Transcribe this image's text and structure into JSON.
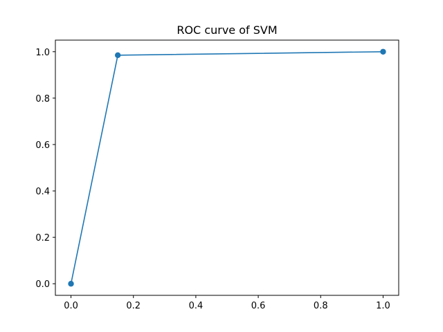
{
  "chart_data": {
    "type": "line",
    "title": "ROC curve of SVM",
    "xlabel": "",
    "ylabel": "",
    "xlim": [
      -0.05,
      1.05
    ],
    "ylim": [
      -0.05,
      1.05
    ],
    "xticks": [
      0.0,
      0.2,
      0.4,
      0.6,
      0.8,
      1.0
    ],
    "xtick_labels": [
      "0.0",
      "0.2",
      "0.4",
      "0.6",
      "0.8",
      "1.0"
    ],
    "yticks": [
      0.0,
      0.2,
      0.4,
      0.6,
      0.8,
      1.0
    ],
    "ytick_labels": [
      "0.0",
      "0.2",
      "0.4",
      "0.6",
      "0.8",
      "1.0"
    ],
    "grid": false,
    "series": [
      {
        "x": [
          0.0,
          0.15,
          1.0
        ],
        "y": [
          0.0,
          0.985,
          1.0
        ],
        "color": "#1f77b4",
        "marker": "circle"
      }
    ]
  }
}
